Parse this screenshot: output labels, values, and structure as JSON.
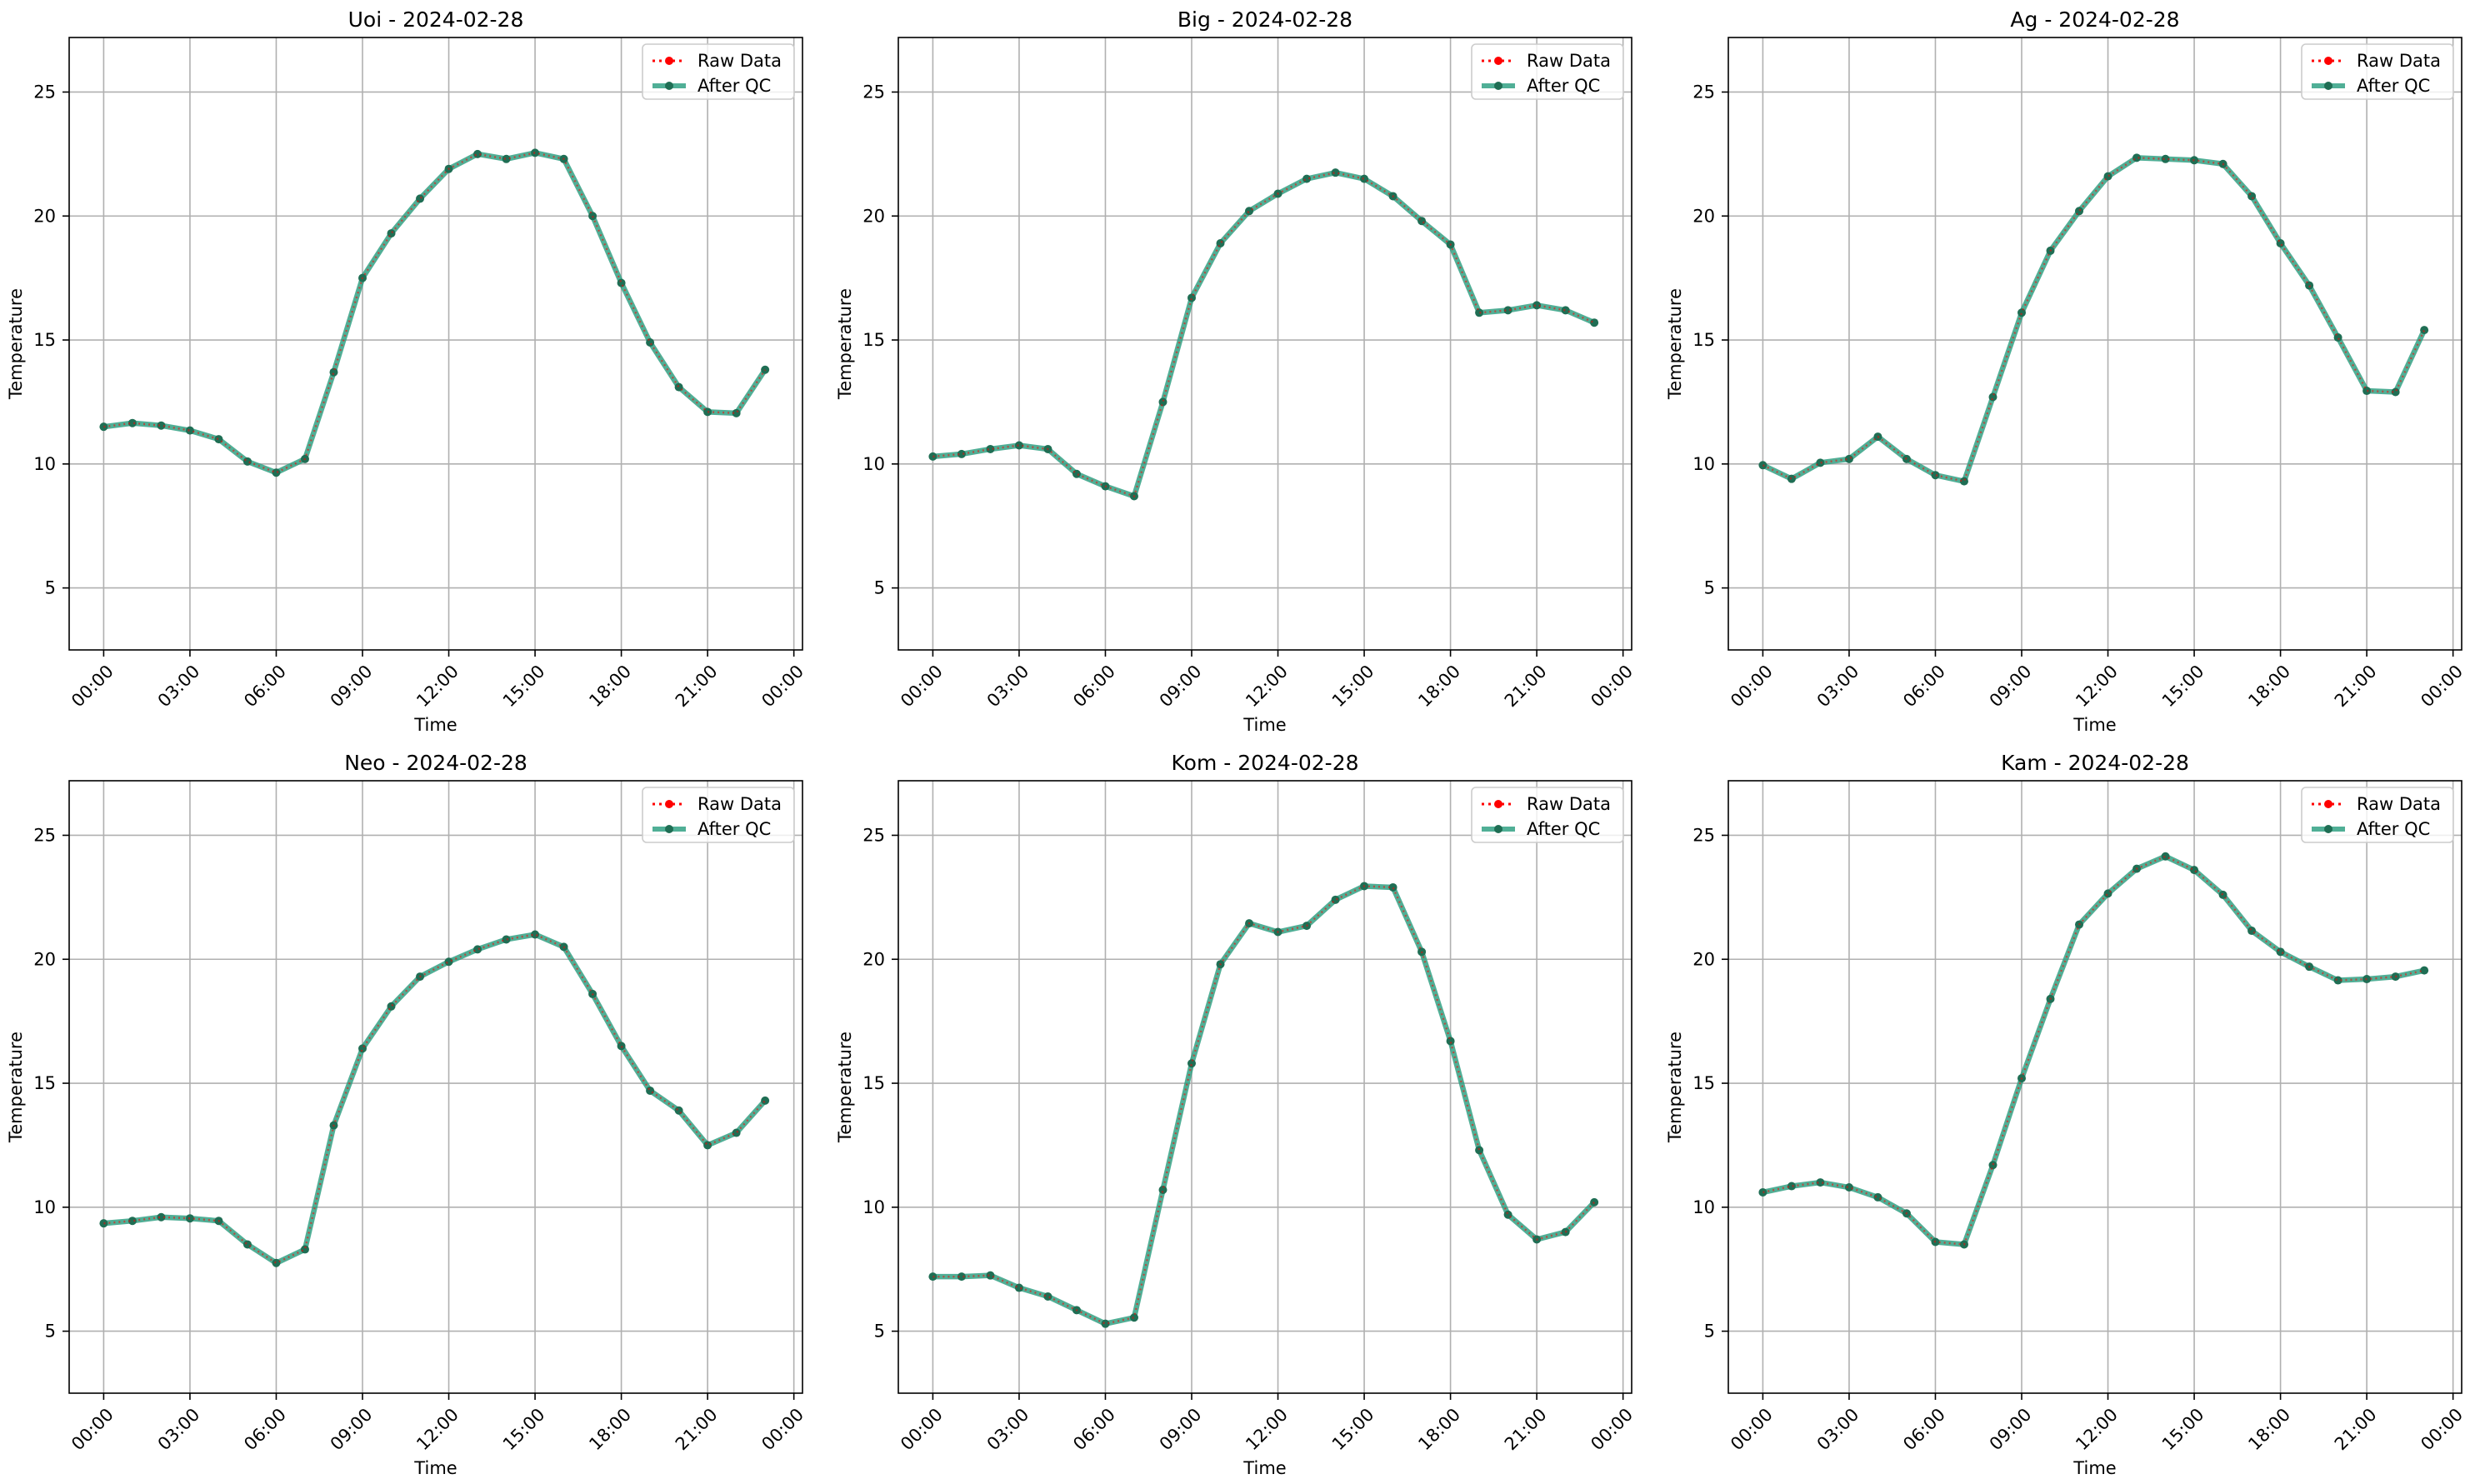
{
  "x_tick_labels": [
    "00:00",
    "03:00",
    "06:00",
    "09:00",
    "12:00",
    "15:00",
    "18:00",
    "21:00",
    "00:00"
  ],
  "y_tick_labels": [
    "5",
    "10",
    "15",
    "20",
    "25"
  ],
  "legend": {
    "raw": "Raw Data",
    "qc": "After QC"
  },
  "colors": {
    "raw": "#ff0000",
    "qc": "#2a9d7f",
    "qc_marker": "#1f6e54"
  },
  "chart_data": [
    {
      "type": "line",
      "title": "Uoi - 2024-02-28",
      "xlabel": "Time",
      "ylabel": "Temperature",
      "x_unit": "hours since 00:00",
      "x": [
        0,
        1,
        2,
        3,
        4,
        5,
        6,
        7,
        8,
        9,
        10,
        11,
        12,
        13,
        14,
        15,
        16,
        17,
        18,
        19,
        20,
        21,
        22,
        23
      ],
      "xlim": [
        -1.2,
        24.3
      ],
      "ylim": [
        2.5,
        27.2
      ],
      "grid": true,
      "legend_position": "top-right",
      "series": [
        {
          "name": "Raw Data",
          "style": "dotted",
          "values": [
            11.5,
            11.65,
            11.55,
            11.35,
            11.0,
            10.1,
            9.65,
            10.2,
            13.7,
            17.5,
            19.3,
            20.7,
            21.9,
            22.5,
            22.3,
            22.55,
            22.3,
            20.0,
            17.3,
            14.9,
            13.1,
            12.1,
            12.05,
            13.8
          ]
        },
        {
          "name": "After QC",
          "style": "solid",
          "values": [
            11.5,
            11.65,
            11.55,
            11.35,
            11.0,
            10.1,
            9.65,
            10.2,
            13.7,
            17.5,
            19.3,
            20.7,
            21.9,
            22.5,
            22.3,
            22.55,
            22.3,
            20.0,
            17.3,
            14.9,
            13.1,
            12.1,
            12.05,
            13.8
          ]
        }
      ]
    },
    {
      "type": "line",
      "title": "Big - 2024-02-28",
      "xlabel": "Time",
      "ylabel": "Temperature",
      "x_unit": "hours since 00:00",
      "x": [
        0,
        1,
        2,
        3,
        4,
        5,
        6,
        7,
        8,
        9,
        10,
        11,
        12,
        13,
        14,
        15,
        16,
        17,
        18,
        19,
        20,
        21,
        22,
        23
      ],
      "xlim": [
        -1.2,
        24.3
      ],
      "ylim": [
        2.5,
        27.2
      ],
      "grid": true,
      "legend_position": "top-right",
      "series": [
        {
          "name": "Raw Data",
          "style": "dotted",
          "values": [
            10.3,
            10.4,
            10.6,
            10.75,
            10.6,
            9.6,
            9.1,
            8.7,
            12.5,
            16.7,
            18.9,
            20.2,
            20.9,
            21.5,
            21.75,
            21.5,
            20.8,
            19.8,
            18.85,
            16.1,
            16.2,
            16.4,
            16.2,
            15.7
          ]
        },
        {
          "name": "After QC",
          "style": "solid",
          "values": [
            10.3,
            10.4,
            10.6,
            10.75,
            10.6,
            9.6,
            9.1,
            8.7,
            12.5,
            16.7,
            18.9,
            20.2,
            20.9,
            21.5,
            21.75,
            21.5,
            20.8,
            19.8,
            18.85,
            16.1,
            16.2,
            16.4,
            16.2,
            15.7
          ]
        }
      ]
    },
    {
      "type": "line",
      "title": "Ag - 2024-02-28",
      "xlabel": "Time",
      "ylabel": "Temperature",
      "x_unit": "hours since 00:00",
      "x": [
        0,
        1,
        2,
        3,
        4,
        5,
        6,
        7,
        8,
        9,
        10,
        11,
        12,
        13,
        14,
        15,
        16,
        17,
        18,
        19,
        20,
        21,
        22,
        23
      ],
      "xlim": [
        -1.2,
        24.3
      ],
      "ylim": [
        2.5,
        27.2
      ],
      "grid": true,
      "legend_position": "top-right",
      "series": [
        {
          "name": "Raw Data",
          "style": "dotted",
          "values": [
            9.95,
            9.4,
            10.05,
            10.2,
            11.1,
            10.2,
            9.55,
            9.3,
            12.7,
            16.1,
            18.6,
            20.2,
            21.6,
            22.35,
            22.3,
            22.25,
            22.1,
            20.8,
            18.9,
            17.2,
            15.1,
            12.95,
            12.9,
            15.4
          ]
        },
        {
          "name": "After QC",
          "style": "solid",
          "values": [
            9.95,
            9.4,
            10.05,
            10.2,
            11.1,
            10.2,
            9.55,
            9.3,
            12.7,
            16.1,
            18.6,
            20.2,
            21.6,
            22.35,
            22.3,
            22.25,
            22.1,
            20.8,
            18.9,
            17.2,
            15.1,
            12.95,
            12.9,
            15.4
          ]
        }
      ]
    },
    {
      "type": "line",
      "title": "Neo - 2024-02-28",
      "xlabel": "Time",
      "ylabel": "Temperature",
      "x_unit": "hours since 00:00",
      "x": [
        0,
        1,
        2,
        3,
        4,
        5,
        6,
        7,
        8,
        9,
        10,
        11,
        12,
        13,
        14,
        15,
        16,
        17,
        18,
        19,
        20,
        21,
        22,
        23
      ],
      "xlim": [
        -1.2,
        24.3
      ],
      "ylim": [
        2.5,
        27.2
      ],
      "grid": true,
      "legend_position": "top-right",
      "series": [
        {
          "name": "Raw Data",
          "style": "dotted",
          "values": [
            9.35,
            9.45,
            9.6,
            9.55,
            9.45,
            8.5,
            7.75,
            8.3,
            13.3,
            16.4,
            18.1,
            19.3,
            19.9,
            20.4,
            20.8,
            21.0,
            20.5,
            18.6,
            16.5,
            14.7,
            13.9,
            12.5,
            13.0,
            14.3
          ]
        },
        {
          "name": "After QC",
          "style": "solid",
          "values": [
            9.35,
            9.45,
            9.6,
            9.55,
            9.45,
            8.5,
            7.75,
            8.3,
            13.3,
            16.4,
            18.1,
            19.3,
            19.9,
            20.4,
            20.8,
            21.0,
            20.5,
            18.6,
            16.5,
            14.7,
            13.9,
            12.5,
            13.0,
            14.3
          ]
        }
      ]
    },
    {
      "type": "line",
      "title": "Kom - 2024-02-28",
      "xlabel": "Time",
      "ylabel": "Temperature",
      "x_unit": "hours since 00:00",
      "x": [
        0,
        1,
        2,
        3,
        4,
        5,
        6,
        7,
        8,
        9,
        10,
        11,
        12,
        13,
        14,
        15,
        16,
        17,
        18,
        19,
        20,
        21,
        22,
        23
      ],
      "xlim": [
        -1.2,
        24.3
      ],
      "ylim": [
        2.5,
        27.2
      ],
      "grid": true,
      "legend_position": "top-right",
      "series": [
        {
          "name": "Raw Data",
          "style": "dotted",
          "values": [
            7.2,
            7.2,
            7.25,
            6.75,
            6.4,
            5.85,
            5.3,
            5.55,
            10.7,
            15.8,
            19.8,
            21.45,
            21.1,
            21.35,
            22.4,
            22.95,
            22.9,
            20.3,
            16.7,
            12.3,
            9.7,
            8.7,
            9.0,
            10.2
          ]
        },
        {
          "name": "After QC",
          "style": "solid",
          "values": [
            7.2,
            7.2,
            7.25,
            6.75,
            6.4,
            5.85,
            5.3,
            5.55,
            10.7,
            15.8,
            19.8,
            21.45,
            21.1,
            21.35,
            22.4,
            22.95,
            22.9,
            20.3,
            16.7,
            12.3,
            9.7,
            8.7,
            9.0,
            10.2
          ]
        }
      ]
    },
    {
      "type": "line",
      "title": "Kam - 2024-02-28",
      "xlabel": "Time",
      "ylabel": "Temperature",
      "x_unit": "hours since 00:00",
      "x": [
        0,
        1,
        2,
        3,
        4,
        5,
        6,
        7,
        8,
        9,
        10,
        11,
        12,
        13,
        14,
        15,
        16,
        17,
        18,
        19,
        20,
        21,
        22,
        23
      ],
      "xlim": [
        -1.2,
        24.3
      ],
      "ylim": [
        2.5,
        27.2
      ],
      "grid": true,
      "legend_position": "top-right",
      "series": [
        {
          "name": "Raw Data",
          "style": "dotted",
          "values": [
            10.6,
            10.85,
            11.0,
            10.8,
            10.4,
            9.75,
            8.6,
            8.5,
            11.7,
            15.2,
            18.4,
            21.4,
            22.65,
            23.65,
            24.15,
            23.6,
            22.6,
            21.15,
            20.3,
            19.7,
            19.15,
            19.2,
            19.3,
            19.55
          ]
        },
        {
          "name": "After QC",
          "style": "solid",
          "values": [
            10.6,
            10.85,
            11.0,
            10.8,
            10.4,
            9.75,
            8.6,
            8.5,
            11.7,
            15.2,
            18.4,
            21.4,
            22.65,
            23.65,
            24.15,
            23.6,
            22.6,
            21.15,
            20.3,
            19.7,
            19.15,
            19.2,
            19.3,
            19.55
          ]
        }
      ]
    }
  ]
}
